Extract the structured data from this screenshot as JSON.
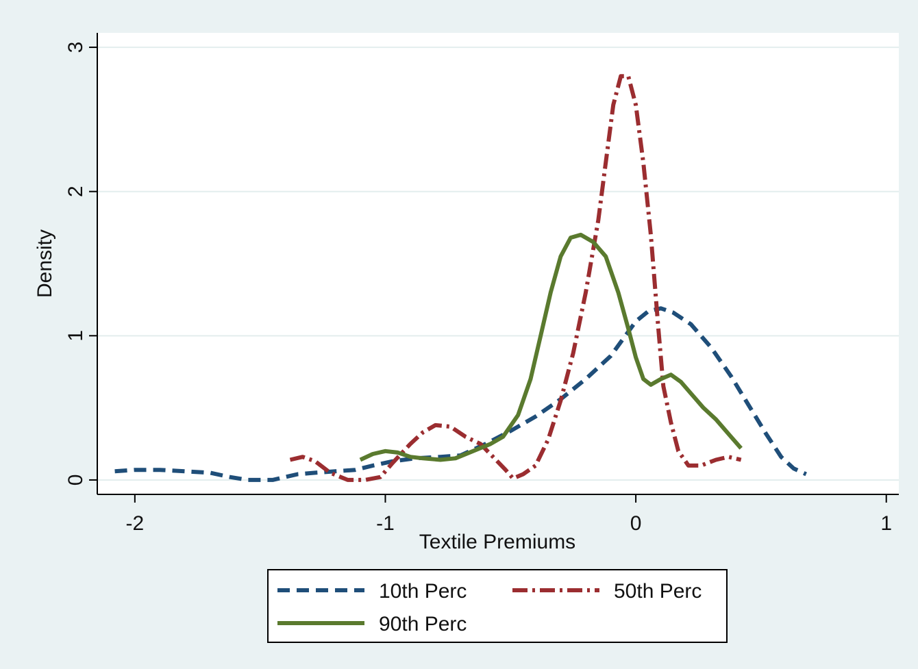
{
  "chart_data": {
    "type": "line",
    "title": "",
    "xlabel": "Textile Premiums",
    "ylabel": "Density",
    "xlim": [
      -2.15,
      1.05
    ],
    "ylim": [
      -0.1,
      3.1
    ],
    "x_ticks": [
      "-2",
      "-1",
      "0",
      "1"
    ],
    "y_ticks": [
      "0",
      "1",
      "2",
      "3"
    ],
    "grid": true,
    "legend_position": "bottom",
    "series": [
      {
        "name": "10th Perc",
        "color": "#1f4e79",
        "style": "dash",
        "points": [
          [
            -2.08,
            0.06
          ],
          [
            -2.0,
            0.07
          ],
          [
            -1.9,
            0.07
          ],
          [
            -1.8,
            0.06
          ],
          [
            -1.7,
            0.05
          ],
          [
            -1.62,
            0.02
          ],
          [
            -1.55,
            0.0
          ],
          [
            -1.45,
            0.0
          ],
          [
            -1.4,
            0.02
          ],
          [
            -1.35,
            0.04
          ],
          [
            -1.28,
            0.05
          ],
          [
            -1.2,
            0.06
          ],
          [
            -1.12,
            0.07
          ],
          [
            -1.05,
            0.1
          ],
          [
            -0.97,
            0.13
          ],
          [
            -0.88,
            0.15
          ],
          [
            -0.78,
            0.16
          ],
          [
            -0.7,
            0.17
          ],
          [
            -0.6,
            0.25
          ],
          [
            -0.5,
            0.34
          ],
          [
            -0.4,
            0.44
          ],
          [
            -0.3,
            0.56
          ],
          [
            -0.2,
            0.7
          ],
          [
            -0.1,
            0.86
          ],
          [
            0.0,
            1.1
          ],
          [
            0.05,
            1.17
          ],
          [
            0.1,
            1.19
          ],
          [
            0.15,
            1.16
          ],
          [
            0.22,
            1.08
          ],
          [
            0.3,
            0.92
          ],
          [
            0.38,
            0.72
          ],
          [
            0.45,
            0.52
          ],
          [
            0.52,
            0.32
          ],
          [
            0.58,
            0.16
          ],
          [
            0.63,
            0.08
          ],
          [
            0.68,
            0.04
          ]
        ]
      },
      {
        "name": "50th Perc",
        "color": "#9b2d30",
        "style": "dashdot",
        "points": [
          [
            -1.38,
            0.14
          ],
          [
            -1.33,
            0.16
          ],
          [
            -1.28,
            0.13
          ],
          [
            -1.22,
            0.05
          ],
          [
            -1.15,
            0.0
          ],
          [
            -1.08,
            0.0
          ],
          [
            -1.02,
            0.02
          ],
          [
            -0.97,
            0.12
          ],
          [
            -0.9,
            0.25
          ],
          [
            -0.85,
            0.33
          ],
          [
            -0.8,
            0.38
          ],
          [
            -0.74,
            0.37
          ],
          [
            -0.68,
            0.3
          ],
          [
            -0.62,
            0.25
          ],
          [
            -0.57,
            0.16
          ],
          [
            -0.52,
            0.07
          ],
          [
            -0.49,
            0.01
          ],
          [
            -0.45,
            0.04
          ],
          [
            -0.4,
            0.1
          ],
          [
            -0.35,
            0.28
          ],
          [
            -0.3,
            0.55
          ],
          [
            -0.25,
            0.88
          ],
          [
            -0.2,
            1.3
          ],
          [
            -0.15,
            1.8
          ],
          [
            -0.12,
            2.2
          ],
          [
            -0.09,
            2.6
          ],
          [
            -0.06,
            2.8
          ],
          [
            -0.03,
            2.8
          ],
          [
            0.0,
            2.6
          ],
          [
            0.03,
            2.2
          ],
          [
            0.06,
            1.7
          ],
          [
            0.09,
            1.05
          ],
          [
            0.11,
            0.65
          ],
          [
            0.14,
            0.4
          ],
          [
            0.17,
            0.2
          ],
          [
            0.21,
            0.1
          ],
          [
            0.26,
            0.1
          ],
          [
            0.32,
            0.14
          ],
          [
            0.37,
            0.16
          ],
          [
            0.42,
            0.14
          ]
        ]
      },
      {
        "name": "90th Perc",
        "color": "#5a7a2e",
        "style": "solid",
        "points": [
          [
            -1.1,
            0.14
          ],
          [
            -1.05,
            0.18
          ],
          [
            -1.0,
            0.2
          ],
          [
            -0.95,
            0.19
          ],
          [
            -0.9,
            0.16
          ],
          [
            -0.85,
            0.15
          ],
          [
            -0.78,
            0.14
          ],
          [
            -0.72,
            0.15
          ],
          [
            -0.65,
            0.2
          ],
          [
            -0.58,
            0.25
          ],
          [
            -0.53,
            0.3
          ],
          [
            -0.47,
            0.45
          ],
          [
            -0.42,
            0.7
          ],
          [
            -0.38,
            1.0
          ],
          [
            -0.34,
            1.3
          ],
          [
            -0.3,
            1.55
          ],
          [
            -0.26,
            1.68
          ],
          [
            -0.22,
            1.7
          ],
          [
            -0.17,
            1.65
          ],
          [
            -0.12,
            1.55
          ],
          [
            -0.07,
            1.3
          ],
          [
            -0.03,
            1.05
          ],
          [
            0.0,
            0.85
          ],
          [
            0.03,
            0.7
          ],
          [
            0.06,
            0.66
          ],
          [
            0.1,
            0.7
          ],
          [
            0.14,
            0.73
          ],
          [
            0.18,
            0.68
          ],
          [
            0.22,
            0.6
          ],
          [
            0.27,
            0.5
          ],
          [
            0.32,
            0.42
          ],
          [
            0.38,
            0.3
          ],
          [
            0.42,
            0.22
          ]
        ]
      }
    ]
  }
}
